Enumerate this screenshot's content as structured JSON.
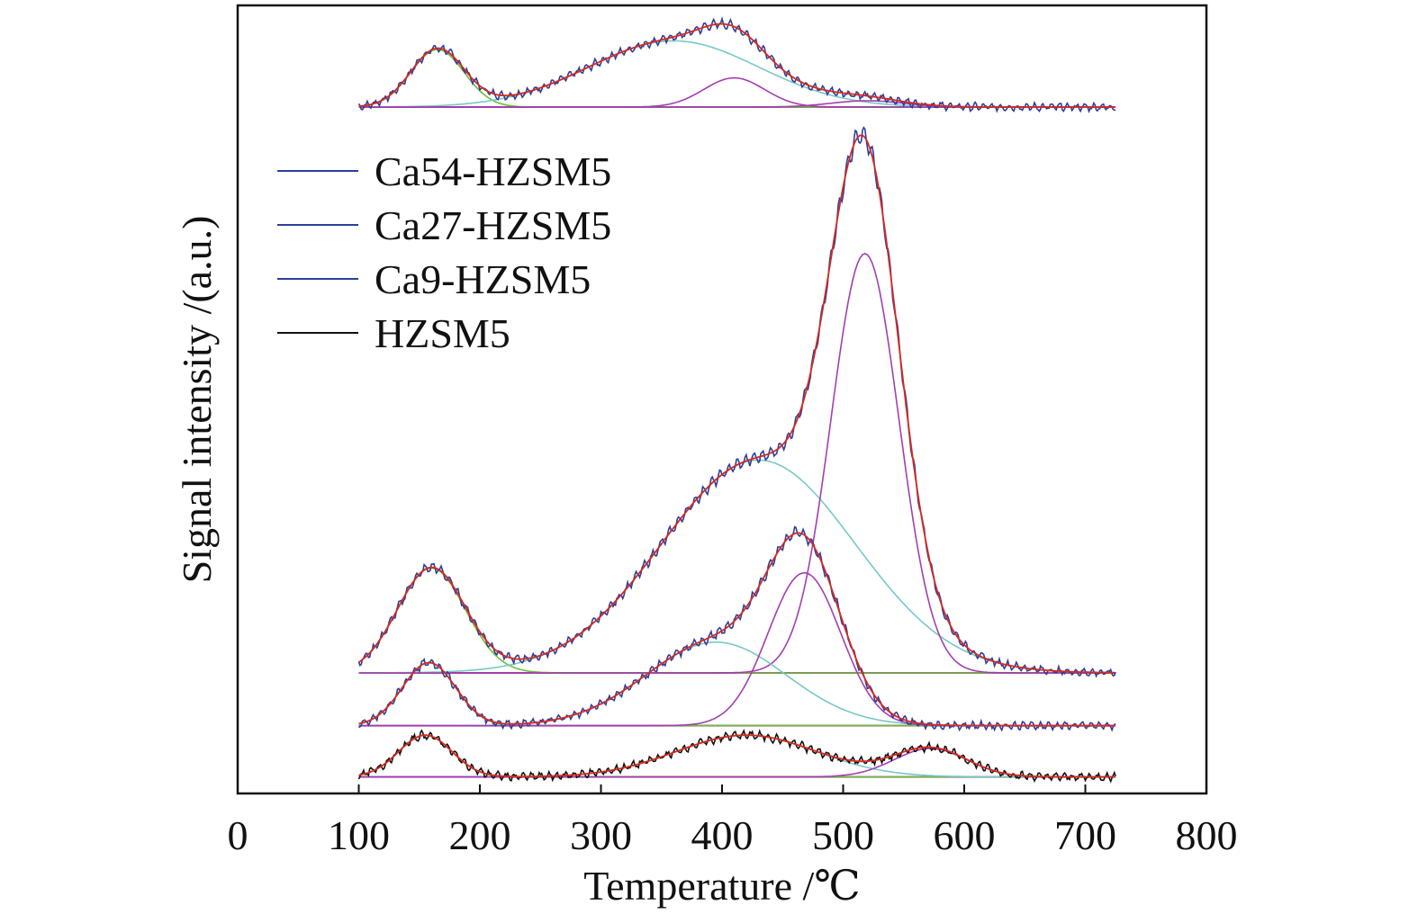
{
  "chart_data": {
    "type": "line",
    "xlabel": "Temperature /℃",
    "ylabel": "Signal intensity /(a.u.)",
    "xlim": [
      0,
      800
    ],
    "xticks": [
      0,
      100,
      200,
      300,
      400,
      500,
      600,
      700,
      800
    ],
    "ylim": [
      0,
      100
    ],
    "y_ticks_shown": false,
    "grid": false,
    "legend_position": "upper-left",
    "legend": [
      {
        "label": "Ca54-HZSM5",
        "color": "#2b3f9c"
      },
      {
        "label": "Ca27-HZSM5",
        "color": "#2b3f9c"
      },
      {
        "label": "Ca9-HZSM5",
        "color": "#2b3f9c"
      },
      {
        "label": "HZSM5",
        "color": "#111111"
      }
    ],
    "fit_colors": {
      "envelope": "#d62a1e",
      "low_t_peak": "#6cc03a",
      "mid_t_peak": "#78c8c8",
      "high_t_peak": "#a23fb0",
      "baseline": "#b0339a"
    },
    "samples": [
      {
        "name": "Ca54-HZSM5",
        "baseline": 87.1,
        "x_range": [
          100,
          725
        ],
        "peaks": [
          {
            "role": "low",
            "center": 165,
            "height": 7.3,
            "sigma": 22
          },
          {
            "role": "mid",
            "center": 360,
            "height": 8.4,
            "sigma": 70
          },
          {
            "role": "high",
            "center": 410,
            "height": 3.7,
            "sigma": 25
          },
          {
            "role": "high",
            "center": 520,
            "height": 0.8,
            "sigma": 30
          }
        ]
      },
      {
        "name": "Ca27-HZSM5",
        "baseline": 15.3,
        "x_range": [
          100,
          725
        ],
        "peaks": [
          {
            "role": "low",
            "center": 160,
            "height": 13.3,
            "sigma": 28
          },
          {
            "role": "mid",
            "center": 430,
            "height": 27.0,
            "sigma": 80
          },
          {
            "role": "high",
            "center": 518,
            "height": 53.2,
            "sigma": 28
          }
        ]
      },
      {
        "name": "Ca9-HZSM5",
        "baseline": 8.6,
        "x_range": [
          100,
          725
        ],
        "peaks": [
          {
            "role": "low",
            "center": 158,
            "height": 8.0,
            "sigma": 22
          },
          {
            "role": "mid",
            "center": 395,
            "height": 10.6,
            "sigma": 58
          },
          {
            "role": "high",
            "center": 468,
            "height": 19.4,
            "sigma": 30
          }
        ]
      },
      {
        "name": "HZSM5",
        "baseline": 2.1,
        "x_range": [
          100,
          725
        ],
        "peaks": [
          {
            "role": "low",
            "center": 155,
            "height": 5.3,
            "sigma": 22
          },
          {
            "role": "mid",
            "center": 420,
            "height": 5.3,
            "sigma": 58
          },
          {
            "role": "high",
            "center": 572,
            "height": 3.6,
            "sigma": 30
          }
        ]
      }
    ]
  }
}
